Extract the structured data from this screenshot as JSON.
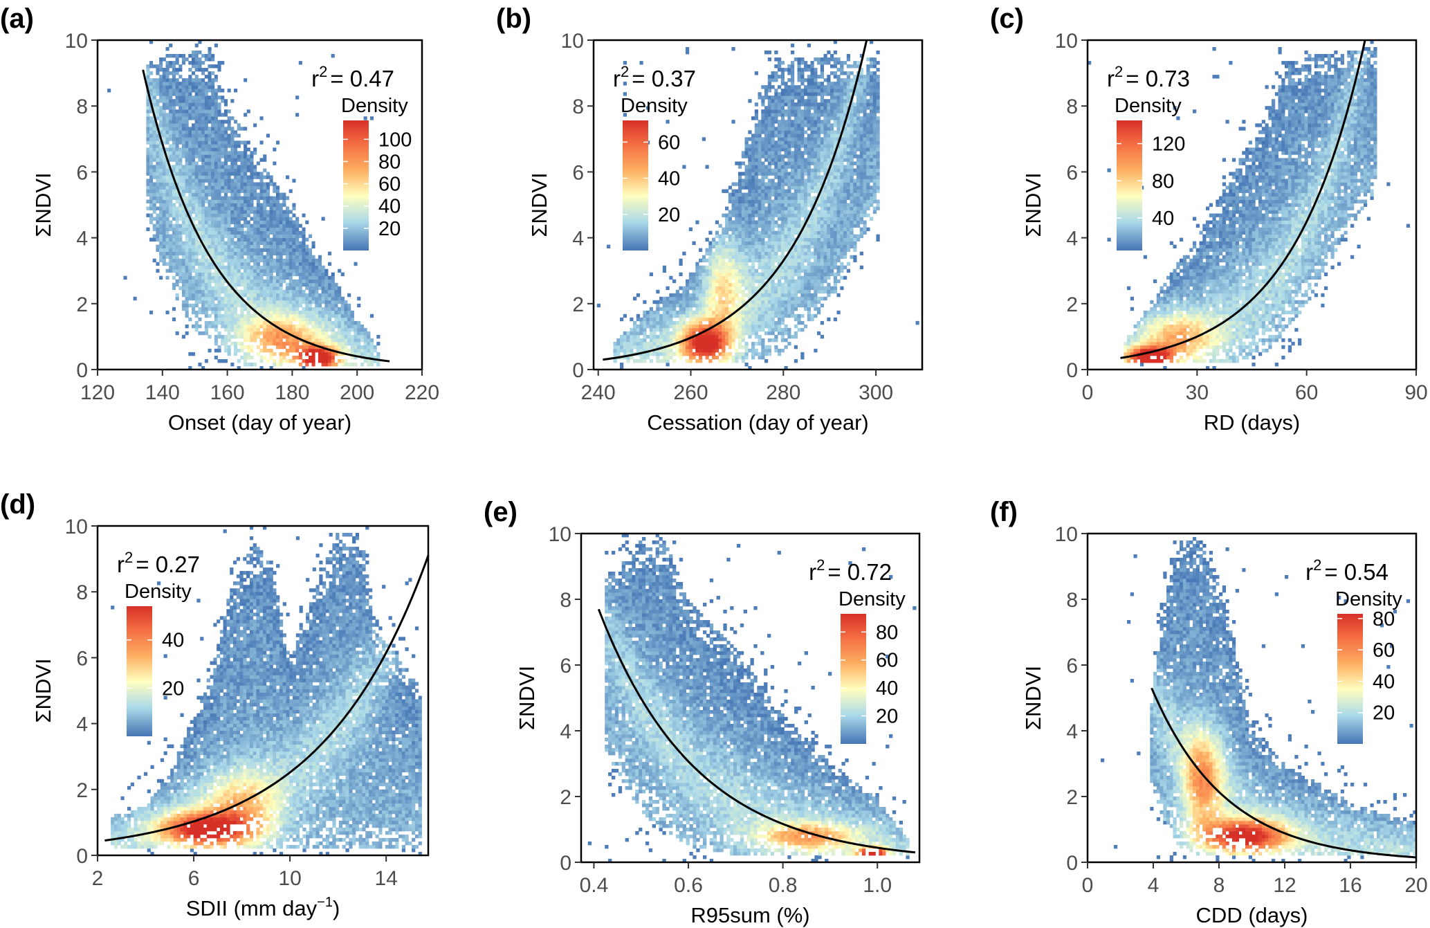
{
  "chart_data": [
    {
      "panel": "(a)",
      "type": "heatmap",
      "xlabel": "Onset (day of year)",
      "ylabel": "ΣNDVI",
      "xlim": [
        120,
        220
      ],
      "ylim": [
        0,
        10
      ],
      "xticks": [
        120,
        140,
        160,
        180,
        200,
        220
      ],
      "yticks": [
        0,
        2,
        4,
        6,
        8,
        10
      ],
      "r2_label": "r",
      "r2_sup": "2",
      "r2_value": "= 0.47",
      "legend": {
        "title": "Density",
        "position": "top-right",
        "ticks": [
          20,
          40,
          60,
          80,
          100
        ],
        "range": [
          0,
          117
        ]
      },
      "fit": {
        "type": "exponential",
        "x": [
          134,
          210
        ],
        "y": [
          9.1,
          0.25
        ]
      }
    },
    {
      "panel": "(b)",
      "type": "heatmap",
      "xlabel": "Cessation (day of year)",
      "ylabel": "ΣNDVI",
      "xlim": [
        239,
        310
      ],
      "ylim": [
        0,
        10
      ],
      "xticks": [
        240,
        260,
        280,
        300
      ],
      "yticks": [
        0,
        2,
        4,
        6,
        8,
        10
      ],
      "r2_label": "r",
      "r2_sup": "2",
      "r2_value": "= 0.37",
      "legend": {
        "title": "Density",
        "position": "top-left",
        "ticks": [
          20,
          40,
          60
        ],
        "range": [
          0,
          72
        ]
      },
      "fit": {
        "type": "exponential",
        "x": [
          241,
          298
        ],
        "y": [
          0.3,
          10
        ]
      }
    },
    {
      "panel": "(c)",
      "type": "heatmap",
      "xlabel": "RD (days)",
      "ylabel": "ΣNDVI",
      "xlim": [
        0,
        90
      ],
      "ylim": [
        0,
        10
      ],
      "xticks": [
        0,
        30,
        60,
        90
      ],
      "yticks": [
        0,
        2,
        4,
        6,
        8,
        10
      ],
      "r2_label": "r",
      "r2_sup": "2",
      "r2_value": "= 0.73",
      "legend": {
        "title": "Density",
        "position": "top-left",
        "ticks": [
          40,
          80,
          120
        ],
        "range": [
          5,
          145
        ]
      },
      "fit": {
        "type": "exponential",
        "x": [
          9,
          76
        ],
        "y": [
          0.35,
          10
        ]
      }
    },
    {
      "panel": "(d)",
      "type": "heatmap",
      "xlabel": "SDII (mm day",
      "xlabel_sup": "−1",
      "xlabel_end": ")",
      "ylabel": "ΣNDVI",
      "xlim": [
        2,
        15.75
      ],
      "ylim": [
        0,
        10
      ],
      "xticks": [
        2,
        6,
        10,
        14
      ],
      "yticks": [
        0,
        2,
        4,
        6,
        8,
        10
      ],
      "r2_label": "r",
      "r2_sup": "2",
      "r2_value": "= 0.27",
      "legend": {
        "title": "Density",
        "position": "top-left",
        "ticks": [
          20,
          40
        ],
        "range": [
          0,
          54
        ]
      },
      "fit": {
        "type": "exponential",
        "x": [
          2.3,
          15.75
        ],
        "y": [
          0.45,
          9.1
        ]
      }
    },
    {
      "panel": "(e)",
      "type": "heatmap",
      "xlabel": "R95sum (%)",
      "ylabel": "ΣNDVI",
      "xlim": [
        0.373,
        1.089
      ],
      "ylim": [
        0,
        10
      ],
      "xticks": [
        0.4,
        0.6,
        0.8,
        1.0
      ],
      "xtick_labels": [
        "0.4",
        "0.6",
        "0.8",
        "1.0"
      ],
      "yticks": [
        0,
        2,
        4,
        6,
        8,
        10
      ],
      "r2_label": "r",
      "r2_sup": "2",
      "r2_value": "= 0.72",
      "legend": {
        "title": "Density",
        "position": "top-right",
        "ticks": [
          20,
          40,
          60,
          80
        ],
        "range": [
          0,
          93
        ]
      },
      "fit": {
        "type": "exponential",
        "x": [
          0.41,
          1.08
        ],
        "y": [
          7.7,
          0.3
        ]
      }
    },
    {
      "panel": "(f)",
      "type": "heatmap",
      "xlabel": "CDD (days)",
      "ylabel": "ΣNDVI",
      "xlim": [
        0,
        20
      ],
      "ylim": [
        0,
        10
      ],
      "xticks": [
        0,
        4,
        8,
        12,
        16,
        20
      ],
      "yticks": [
        0,
        2,
        4,
        6,
        8,
        10
      ],
      "r2_label": "r",
      "r2_sup": "2",
      "r2_value": "= 0.54",
      "legend": {
        "title": "Density",
        "position": "top-right",
        "ticks": [
          20,
          40,
          60,
          80
        ],
        "range": [
          0,
          83
        ]
      },
      "fit": {
        "type": "exponential",
        "x": [
          3.9,
          20
        ],
        "y": [
          5.3,
          0.15
        ]
      }
    }
  ],
  "colors": {
    "low": "#4575b4",
    "mid": "#ffffbf",
    "high": "#d73027",
    "fit_line": "#000000"
  }
}
